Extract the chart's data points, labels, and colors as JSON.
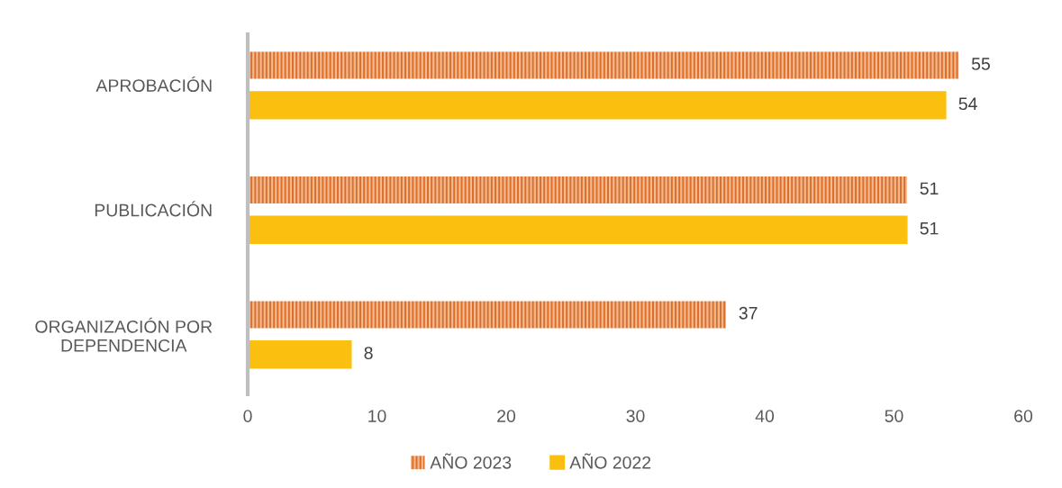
{
  "chart_data": {
    "type": "bar",
    "orientation": "horizontal",
    "categories": [
      "APROBACIÓN",
      "PUBLICACIÓN",
      "ORGANIZACIÓN POR\nDEPENDENCIA"
    ],
    "series": [
      {
        "name": "AÑO 2023",
        "color": "#dc6e2c",
        "values": [
          55,
          51,
          37
        ]
      },
      {
        "name": "AÑO 2022",
        "color": "#fbbf10",
        "values": [
          54,
          51,
          8
        ]
      }
    ],
    "xlim": [
      0,
      60
    ],
    "xticks": [
      0,
      10,
      20,
      30,
      40,
      50,
      60
    ],
    "data_labels": true,
    "legend": "bottom",
    "grid": false
  }
}
